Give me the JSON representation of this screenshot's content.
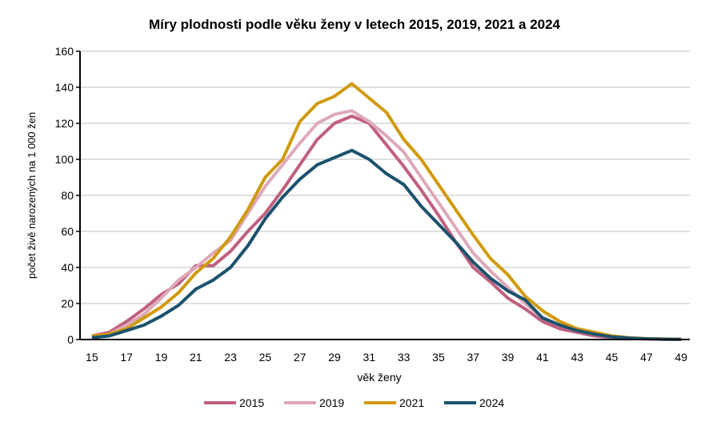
{
  "chart_data": {
    "type": "line",
    "title": "Míry  plodnosti podle věku ženy v letech 2015, 2019, 2021 a 2024",
    "xlabel": "věk  ženy",
    "ylabel": "počet živě  narozených na  1 000 žen",
    "ylim": [
      0,
      160
    ],
    "yticks": [
      0,
      20,
      40,
      60,
      80,
      100,
      120,
      140,
      160
    ],
    "x": [
      15,
      16,
      17,
      18,
      19,
      20,
      21,
      22,
      23,
      24,
      25,
      26,
      27,
      28,
      29,
      30,
      31,
      32,
      33,
      34,
      35,
      36,
      37,
      38,
      39,
      40,
      41,
      42,
      43,
      44,
      45,
      46,
      47,
      48,
      49
    ],
    "xtick_labels": [
      "15",
      "17",
      "19",
      "21",
      "23",
      "25",
      "27",
      "29",
      "31",
      "33",
      "35",
      "37",
      "39",
      "41",
      "43",
      "45",
      "47",
      "49"
    ],
    "grid": true,
    "legend_position": "bottom",
    "series": [
      {
        "name": "2015",
        "color": "#C0607F",
        "values": [
          2,
          4,
          10,
          17,
          25,
          31,
          41,
          41,
          49,
          60,
          70,
          83,
          97,
          111,
          120,
          124,
          120,
          108,
          96,
          83,
          69,
          54,
          40,
          32,
          23,
          17,
          10,
          6,
          4,
          2,
          1,
          0.5,
          0.3,
          0.2,
          0.1
        ]
      },
      {
        "name": "2019",
        "color": "#DDA9B8",
        "values": [
          2,
          3,
          8,
          14,
          23,
          33,
          40,
          48,
          55,
          70,
          85,
          97,
          109,
          120,
          125,
          127,
          121,
          113,
          104,
          90,
          76,
          62,
          48,
          38,
          29,
          20,
          12,
          8,
          5,
          3,
          1.5,
          0.8,
          0.4,
          0.2,
          0.1
        ]
      },
      {
        "name": "2021",
        "color": "#D19A0F",
        "values": [
          2,
          3,
          6,
          12,
          18,
          26,
          37,
          45,
          57,
          72,
          90,
          100,
          121,
          131,
          135,
          142,
          134,
          126,
          111,
          100,
          86,
          72,
          58,
          45,
          36,
          24,
          16,
          10,
          6,
          4,
          2,
          1,
          0.5,
          0.3,
          0.1
        ]
      },
      {
        "name": "2024",
        "color": "#1A526E",
        "values": [
          1,
          2,
          5,
          8,
          13,
          19,
          28,
          33,
          40,
          52,
          67,
          79,
          89,
          97,
          101,
          105,
          100,
          92,
          86,
          74,
          64,
          54,
          43,
          34,
          27,
          22,
          12,
          8,
          5,
          3,
          1.5,
          0.8,
          0.4,
          0.2,
          0.1
        ]
      }
    ]
  }
}
